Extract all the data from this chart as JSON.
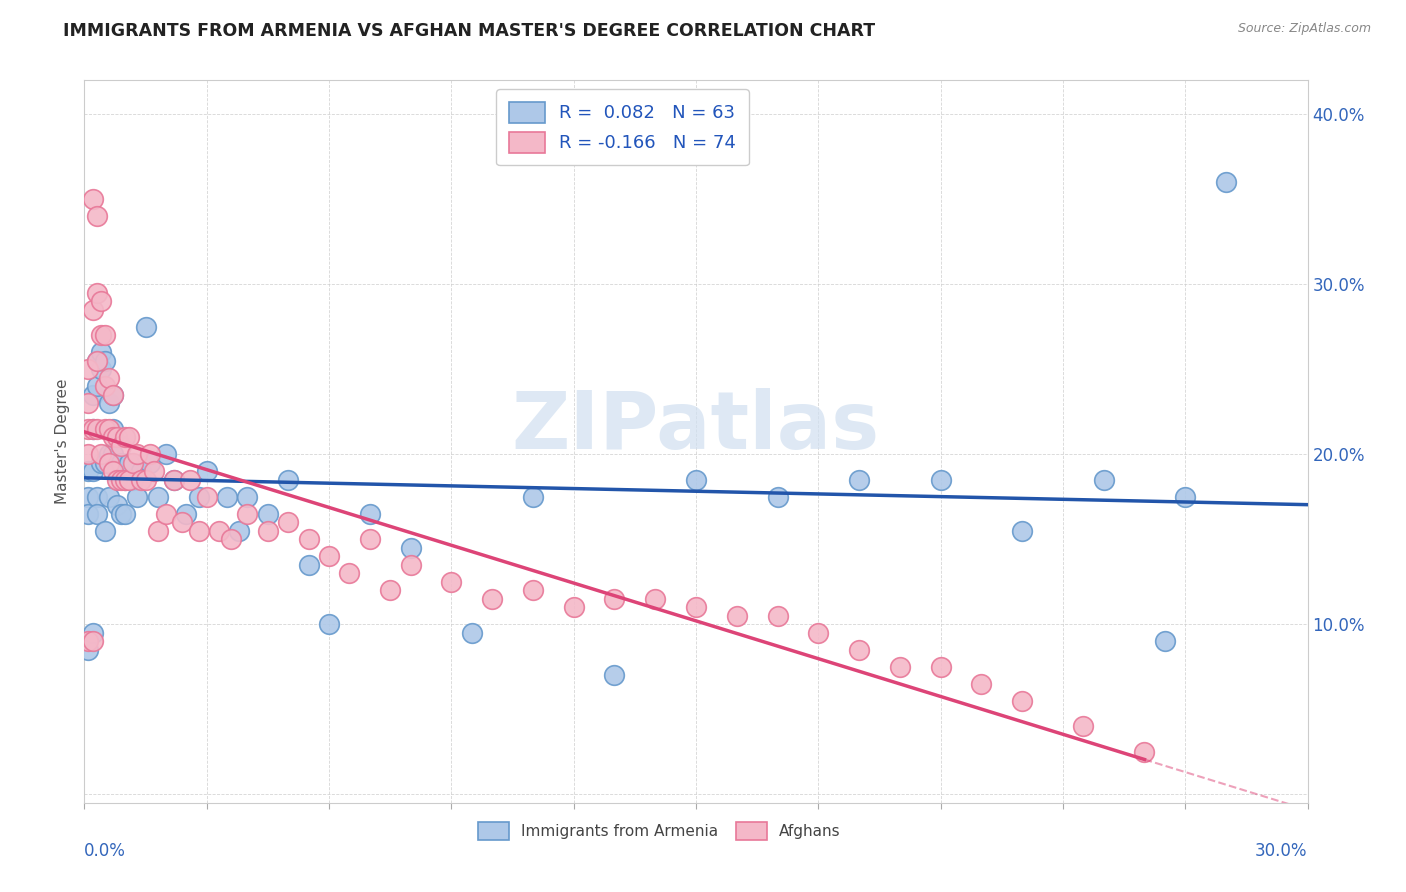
{
  "title": "IMMIGRANTS FROM ARMENIA VS AFGHAN MASTER'S DEGREE CORRELATION CHART",
  "source_text": "Source: ZipAtlas.com",
  "ylabel": "Master's Degree",
  "xlim": [
    0.0,
    0.3
  ],
  "ylim": [
    -0.005,
    0.42
  ],
  "yticks": [
    0.0,
    0.1,
    0.2,
    0.3,
    0.4
  ],
  "ytick_labels": [
    "",
    "10.0%",
    "20.0%",
    "30.0%",
    "40.0%"
  ],
  "xticks": [
    0.0,
    0.03,
    0.06,
    0.09,
    0.12,
    0.15,
    0.18,
    0.21,
    0.24,
    0.27,
    0.3
  ],
  "legend_r1": "R =  0.082   N = 63",
  "legend_r2": "R = -0.166   N = 74",
  "blue_scatter_face": "#aec8e8",
  "blue_scatter_edge": "#6699cc",
  "pink_scatter_face": "#f4b8c8",
  "pink_scatter_edge": "#e87898",
  "trend_blue": "#2255aa",
  "trend_pink": "#dd4477",
  "legend_blue_face": "#aec8e8",
  "legend_blue_edge": "#6699cc",
  "legend_pink_face": "#f4b8c8",
  "legend_pink_edge": "#e87898",
  "watermark_color": "#d0dff0",
  "watermark": "ZIPatlas",
  "grid_color": "#cccccc",
  "armenia_x": [
    0.001,
    0.001,
    0.001,
    0.001,
    0.002,
    0.002,
    0.002,
    0.002,
    0.003,
    0.003,
    0.003,
    0.003,
    0.004,
    0.004,
    0.004,
    0.005,
    0.005,
    0.005,
    0.006,
    0.006,
    0.006,
    0.007,
    0.007,
    0.007,
    0.008,
    0.008,
    0.009,
    0.009,
    0.01,
    0.01,
    0.011,
    0.012,
    0.013,
    0.014,
    0.015,
    0.016,
    0.018,
    0.02,
    0.022,
    0.025,
    0.028,
    0.03,
    0.035,
    0.038,
    0.04,
    0.045,
    0.05,
    0.055,
    0.06,
    0.07,
    0.08,
    0.095,
    0.11,
    0.13,
    0.15,
    0.17,
    0.19,
    0.21,
    0.23,
    0.25,
    0.265,
    0.27,
    0.28
  ],
  "armenia_y": [
    0.19,
    0.175,
    0.165,
    0.085,
    0.235,
    0.215,
    0.19,
    0.095,
    0.255,
    0.24,
    0.175,
    0.165,
    0.26,
    0.25,
    0.195,
    0.255,
    0.195,
    0.155,
    0.23,
    0.2,
    0.175,
    0.235,
    0.215,
    0.2,
    0.19,
    0.17,
    0.195,
    0.165,
    0.185,
    0.165,
    0.195,
    0.185,
    0.175,
    0.19,
    0.275,
    0.195,
    0.175,
    0.2,
    0.185,
    0.165,
    0.175,
    0.19,
    0.175,
    0.155,
    0.175,
    0.165,
    0.185,
    0.135,
    0.1,
    0.165,
    0.145,
    0.095,
    0.175,
    0.07,
    0.185,
    0.175,
    0.185,
    0.185,
    0.155,
    0.185,
    0.09,
    0.175,
    0.36
  ],
  "afghan_x": [
    0.001,
    0.001,
    0.001,
    0.001,
    0.001,
    0.002,
    0.002,
    0.002,
    0.002,
    0.003,
    0.003,
    0.003,
    0.003,
    0.004,
    0.004,
    0.004,
    0.005,
    0.005,
    0.005,
    0.006,
    0.006,
    0.006,
    0.007,
    0.007,
    0.007,
    0.008,
    0.008,
    0.009,
    0.009,
    0.01,
    0.01,
    0.011,
    0.011,
    0.012,
    0.013,
    0.014,
    0.015,
    0.016,
    0.017,
    0.018,
    0.02,
    0.022,
    0.024,
    0.026,
    0.028,
    0.03,
    0.033,
    0.036,
    0.04,
    0.045,
    0.05,
    0.055,
    0.06,
    0.065,
    0.07,
    0.075,
    0.08,
    0.09,
    0.1,
    0.11,
    0.12,
    0.13,
    0.14,
    0.15,
    0.16,
    0.17,
    0.18,
    0.19,
    0.2,
    0.21,
    0.22,
    0.23,
    0.245,
    0.26
  ],
  "afghan_y": [
    0.25,
    0.23,
    0.215,
    0.2,
    0.09,
    0.35,
    0.285,
    0.215,
    0.09,
    0.34,
    0.295,
    0.255,
    0.215,
    0.29,
    0.27,
    0.2,
    0.27,
    0.24,
    0.215,
    0.245,
    0.215,
    0.195,
    0.235,
    0.21,
    0.19,
    0.21,
    0.185,
    0.205,
    0.185,
    0.21,
    0.185,
    0.21,
    0.185,
    0.195,
    0.2,
    0.185,
    0.185,
    0.2,
    0.19,
    0.155,
    0.165,
    0.185,
    0.16,
    0.185,
    0.155,
    0.175,
    0.155,
    0.15,
    0.165,
    0.155,
    0.16,
    0.15,
    0.14,
    0.13,
    0.15,
    0.12,
    0.135,
    0.125,
    0.115,
    0.12,
    0.11,
    0.115,
    0.115,
    0.11,
    0.105,
    0.105,
    0.095,
    0.085,
    0.075,
    0.075,
    0.065,
    0.055,
    0.04,
    0.025
  ]
}
